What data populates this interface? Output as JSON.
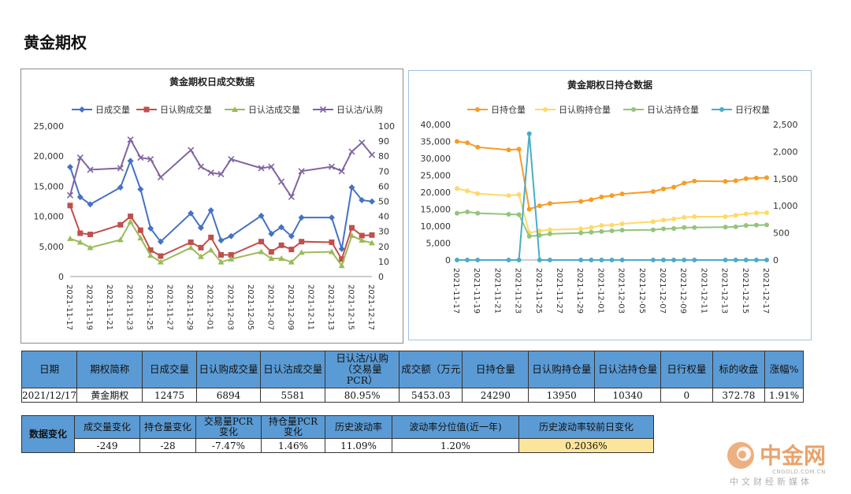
{
  "page": {
    "title": "黄金期权"
  },
  "chart_data": [
    {
      "type": "line",
      "title": "黄金期权日成交数据",
      "x": [
        "2021-11-17",
        "2021-11-18",
        "2021-11-19",
        "2021-11-22",
        "2021-11-23",
        "2021-11-24",
        "2021-11-25",
        "2021-11-26",
        "2021-11-29",
        "2021-11-30",
        "2021-12-01",
        "2021-12-02",
        "2021-12-03",
        "2021-12-06",
        "2021-12-07",
        "2021-12-08",
        "2021-12-09",
        "2021-12-10",
        "2021-12-13",
        "2021-12-14",
        "2021-12-15",
        "2021-12-16",
        "2021-12-17"
      ],
      "xticks": [
        "2021-11-17",
        "2021-11-19",
        "2021-11-21",
        "2021-11-23",
        "2021-11-25",
        "2021-11-27",
        "2021-11-29",
        "2021-12-01",
        "2021-12-03",
        "2021-12-05",
        "2021-12-07",
        "2021-12-09",
        "2021-12-11",
        "2021-12-13",
        "2021-12-15",
        "2021-12-17"
      ],
      "ylim": [
        0,
        25000
      ],
      "y2lim": [
        0,
        100
      ],
      "yticks": [
        "0",
        "5,000",
        "10,000",
        "15,000",
        "20,000",
        "25,000"
      ],
      "y2ticks": [
        "0",
        "10",
        "20",
        "30",
        "40",
        "50",
        "60",
        "70",
        "80",
        "90",
        "100"
      ],
      "series": [
        {
          "name": "日成交量",
          "axis": "left",
          "color": "#4472c4",
          "marker": "diamond",
          "values": [
            18200,
            13200,
            12000,
            14800,
            19200,
            14500,
            8000,
            5800,
            10500,
            8100,
            11000,
            6000,
            6700,
            10100,
            7100,
            8200,
            6700,
            9800,
            9800,
            4600,
            14800,
            12700,
            12475
          ]
        },
        {
          "name": "日认购成交量",
          "axis": "left",
          "color": "#c0504d",
          "marker": "square",
          "values": [
            11800,
            7200,
            7000,
            8600,
            10000,
            7700,
            4400,
            3400,
            5700,
            4800,
            6500,
            3600,
            3600,
            5800,
            4100,
            5200,
            4500,
            5800,
            5700,
            2900,
            8100,
            6800,
            6894
          ]
        },
        {
          "name": "日认沽成交量",
          "axis": "left",
          "color": "#9bbb59",
          "marker": "triangle",
          "values": [
            6300,
            5700,
            4800,
            6100,
            9100,
            6400,
            3500,
            2400,
            4800,
            3300,
            4400,
            2400,
            2900,
            4100,
            3000,
            3000,
            2400,
            4000,
            4100,
            1800,
            6800,
            6000,
            5581
          ]
        },
        {
          "name": "日认沽/认购",
          "axis": "right",
          "color": "#8064a2",
          "marker": "x",
          "values": [
            54,
            79,
            71,
            72,
            91,
            79,
            78,
            66,
            84,
            73,
            69,
            68,
            78,
            72,
            73,
            63,
            53,
            70,
            73,
            70,
            83,
            89,
            80.95
          ]
        }
      ]
    },
    {
      "type": "line",
      "title": "黄金期权日持仓数据",
      "x": [
        "2021-11-17",
        "2021-11-18",
        "2021-11-19",
        "2021-11-22",
        "2021-11-23",
        "2021-11-24",
        "2021-11-25",
        "2021-11-26",
        "2021-11-29",
        "2021-11-30",
        "2021-12-01",
        "2021-12-02",
        "2021-12-03",
        "2021-12-06",
        "2021-12-07",
        "2021-12-08",
        "2021-12-09",
        "2021-12-10",
        "2021-12-13",
        "2021-12-14",
        "2021-12-15",
        "2021-12-16",
        "2021-12-17"
      ],
      "xticks": [
        "2021-11-17",
        "2021-11-19",
        "2021-11-21",
        "2021-11-23",
        "2021-11-25",
        "2021-11-27",
        "2021-11-29",
        "2021-12-01",
        "2021-12-03",
        "2021-12-05",
        "2021-12-07",
        "2021-12-09",
        "2021-12-11",
        "2021-12-13",
        "2021-12-15",
        "2021-12-17"
      ],
      "ylim": [
        0,
        40000
      ],
      "y2lim": [
        0,
        2500
      ],
      "yticks": [
        "0",
        "5,000",
        "10,000",
        "15,000",
        "20,000",
        "25,000",
        "30,000",
        "35,000",
        "40,000"
      ],
      "y2ticks": [
        "0",
        "500",
        "1,000",
        "1,500",
        "2,000",
        "2,500"
      ],
      "series": [
        {
          "name": "日持仓量",
          "axis": "left",
          "color": "#f79c24",
          "marker": "circle",
          "values": [
            35000,
            34600,
            33300,
            32500,
            32700,
            15000,
            16000,
            16700,
            17300,
            17800,
            18600,
            19000,
            19500,
            20200,
            21000,
            21500,
            22700,
            23300,
            23200,
            23400,
            24000,
            24200,
            24290
          ]
        },
        {
          "name": "日认购持仓量",
          "axis": "left",
          "color": "#ffd966",
          "marker": "circle",
          "values": [
            21100,
            20400,
            19600,
            19000,
            19300,
            8000,
            8600,
            8900,
            9200,
            9600,
            10200,
            10300,
            10700,
            11300,
            11800,
            12100,
            12600,
            12800,
            12800,
            13200,
            13600,
            13900,
            13950
          ]
        },
        {
          "name": "日认沽持仓量",
          "axis": "left",
          "color": "#93c47d",
          "marker": "circle",
          "values": [
            13800,
            14200,
            13800,
            13500,
            13400,
            7000,
            7300,
            7700,
            8000,
            8200,
            8400,
            8600,
            8800,
            8900,
            9200,
            9300,
            9600,
            9600,
            9700,
            9800,
            10200,
            10300,
            10340
          ]
        },
        {
          "name": "日行权量",
          "axis": "right",
          "color": "#4bacc6",
          "marker": "circle",
          "values": [
            0,
            0,
            0,
            0,
            0,
            2330,
            0,
            0,
            0,
            0,
            0,
            0,
            0,
            0,
            0,
            0,
            0,
            0,
            0,
            0,
            0,
            0,
            0
          ]
        }
      ]
    }
  ],
  "table1": {
    "headers": [
      "日期",
      "期权简称",
      "日成交量",
      "日认购成交量",
      "日认沽成交量",
      "日认沽/认购（交易量PCR）",
      "成交额（万元",
      "日持仓量",
      "日认购持仓量",
      "日认沽持仓量",
      "日行权量",
      "标的收盘",
      "涨幅%"
    ],
    "values": [
      "2021/12/17",
      "黄金期权",
      "12475",
      "6894",
      "5581",
      "80.95%",
      "5453.03",
      "24290",
      "13950",
      "10340",
      "0",
      "372.78",
      "1.91%"
    ]
  },
  "table2": {
    "label": "数据变化",
    "headers": [
      "成交量变化",
      "持仓量变化",
      "交易量PCR变化",
      "持仓量PCR变化",
      "历史波动率",
      "波动率分位值(近一年)",
      "历史波动率较前日变化"
    ],
    "values": [
      "-249",
      "-28",
      "-7.47%",
      "1.46%",
      "11.09%",
      "1.20%",
      "0.2036%"
    ],
    "highlight_color": "#fbe59a"
  },
  "logo": {
    "name": "中金网",
    "url_text": "CNGOLD.COM.CN",
    "tagline": "中文财经新媒体",
    "color": "#e8863a"
  }
}
